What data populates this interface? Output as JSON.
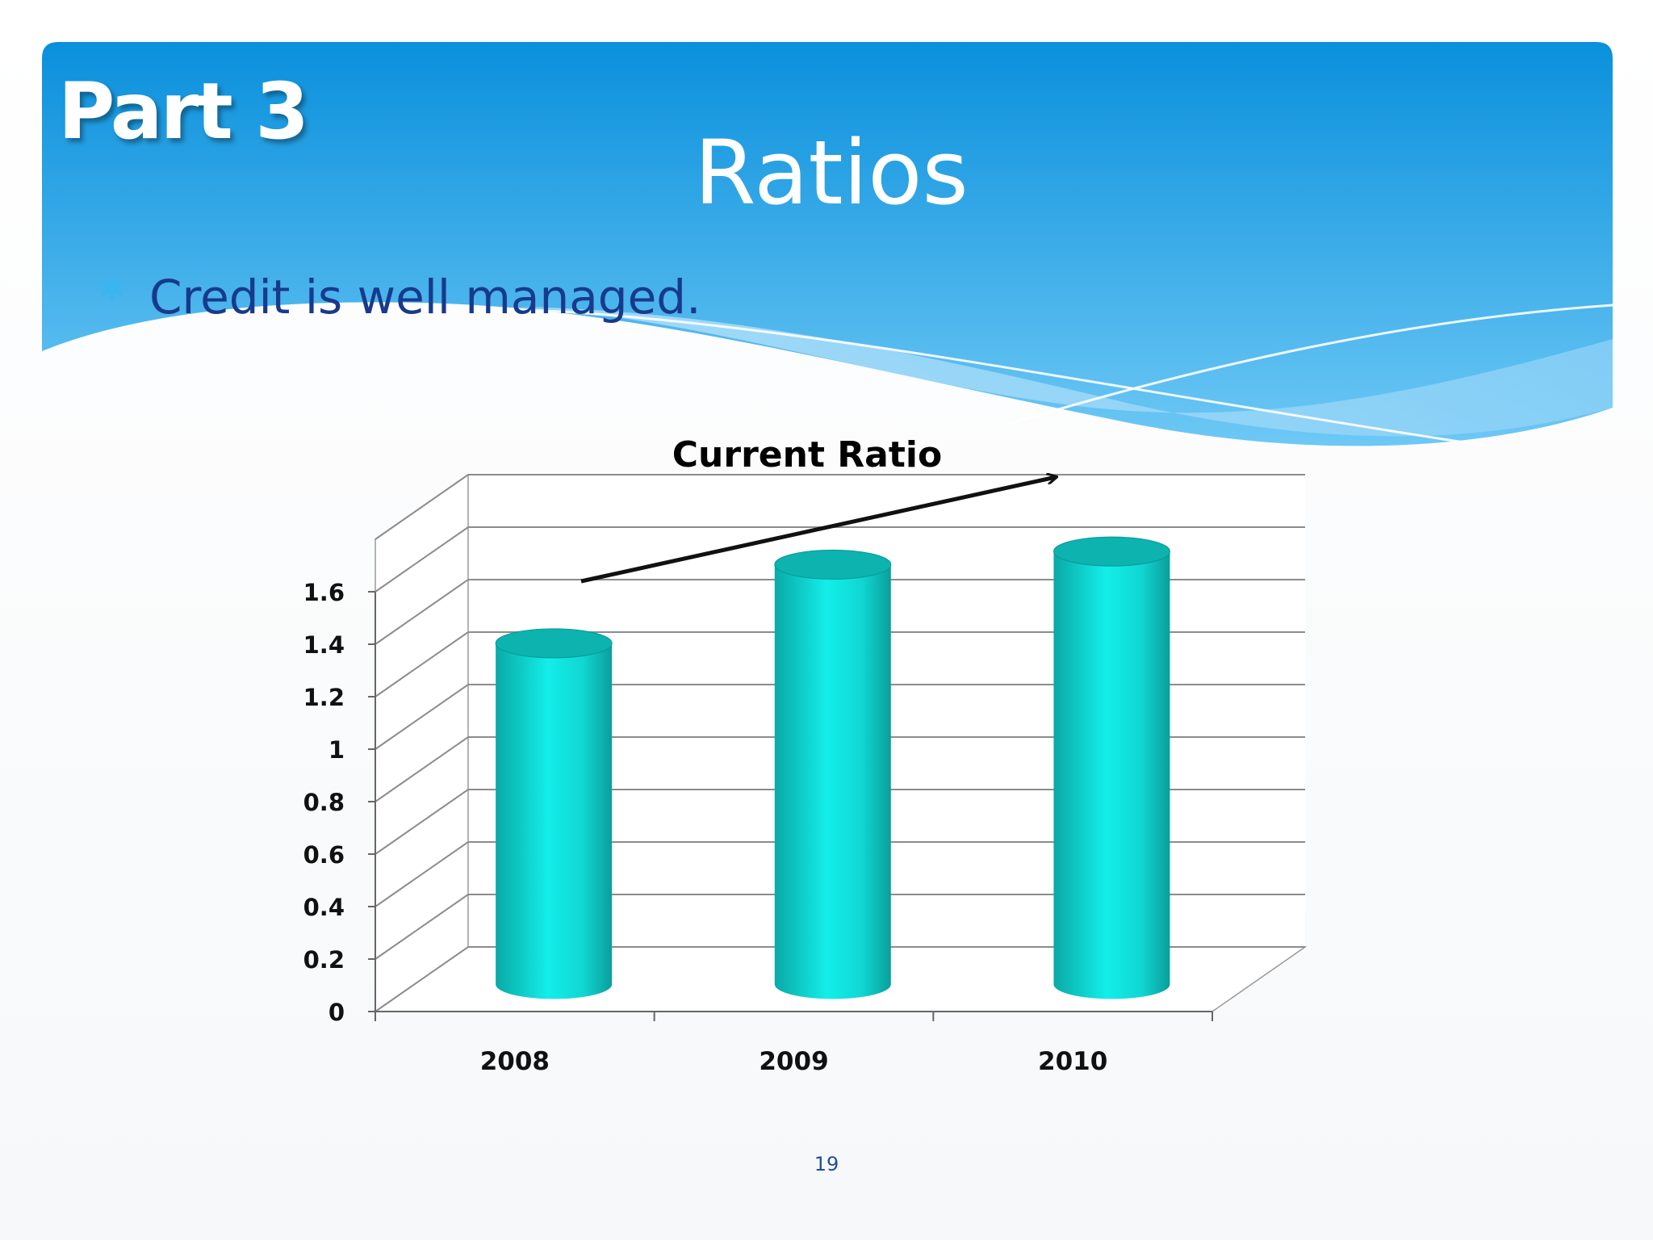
{
  "slide": {
    "part_label": "Part 3",
    "title": "Ratios",
    "bullet": "Credit is well managed.",
    "page_number": "19"
  },
  "colors": {
    "header_top": "#0a90dc",
    "header_bottom": "#6dc8f5",
    "bullet_text": "#183a8c",
    "bar": "#12e0dc",
    "bar_dark": "#0ba6a4"
  },
  "chart_data": {
    "type": "bar",
    "title": "Current Ratio",
    "categories": [
      "2008",
      "2009",
      "2010"
    ],
    "values": [
      1.3,
      1.6,
      1.65
    ],
    "ylim": [
      0,
      1.8
    ],
    "yticks": [
      "0",
      "0.2",
      "0.4",
      "0.6",
      "0.8",
      "1",
      "1.2",
      "1.4",
      "1.6"
    ],
    "grid": true,
    "legend": "none",
    "style": "3d-cylinder",
    "annotation": "upward trend arrow"
  }
}
